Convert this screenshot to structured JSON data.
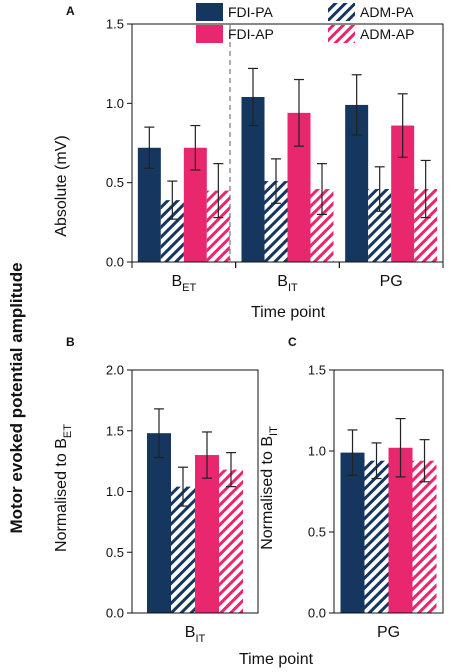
{
  "figure": {
    "ylabel_global": "Motor evoked potential amplitude",
    "xlabel_bottom": "Time point"
  },
  "legend": [
    {
      "name": "FDI-PA"
    },
    {
      "name": "ADM-PA"
    },
    {
      "name": "FDI-AP"
    },
    {
      "name": "ADM-AP"
    }
  ],
  "colors": {
    "FDI-PA": "#15365e",
    "ADM-PA": "#15365e",
    "FDI-AP": "#e8276f",
    "ADM-AP": "#e8276f"
  },
  "chart_data": [
    {
      "panel": "A",
      "type": "bar",
      "ylabel": "Absolute (mV)",
      "xlabel": "Time point",
      "categories": [
        "B_ET",
        "B_IT",
        "PG"
      ],
      "ylim": [
        0,
        1.5
      ],
      "yticks": [
        "0.0",
        "0.5",
        "1.0",
        "1.5"
      ],
      "separator": "dashed vertical line between B_ET and B_IT",
      "series": [
        {
          "name": "FDI-PA",
          "pattern": "solid",
          "values": [
            0.72,
            1.04,
            0.99
          ],
          "errors": [
            0.13,
            0.18,
            0.19
          ]
        },
        {
          "name": "ADM-PA",
          "pattern": "hatched",
          "values": [
            0.39,
            0.51,
            0.46
          ],
          "errors": [
            0.12,
            0.14,
            0.14
          ]
        },
        {
          "name": "FDI-AP",
          "pattern": "solid",
          "values": [
            0.72,
            0.94,
            0.86
          ],
          "errors": [
            0.14,
            0.21,
            0.2
          ]
        },
        {
          "name": "ADM-AP",
          "pattern": "hatched",
          "values": [
            0.45,
            0.46,
            0.46
          ],
          "errors": [
            0.17,
            0.16,
            0.18
          ]
        }
      ]
    },
    {
      "panel": "B",
      "type": "bar",
      "ylabel": "Normalised to B_ET",
      "xlabel": "",
      "categories": [
        "B_IT"
      ],
      "ylim": [
        0,
        2.0
      ],
      "yticks": [
        "0.0",
        "0.5",
        "1.0",
        "1.5",
        "2.0"
      ],
      "series": [
        {
          "name": "FDI-PA",
          "pattern": "solid",
          "values": [
            1.48
          ],
          "errors": [
            0.2
          ]
        },
        {
          "name": "ADM-PA",
          "pattern": "hatched",
          "values": [
            1.04
          ],
          "errors": [
            0.16
          ]
        },
        {
          "name": "FDI-AP",
          "pattern": "solid",
          "values": [
            1.3
          ],
          "errors": [
            0.19
          ]
        },
        {
          "name": "ADM-AP",
          "pattern": "hatched",
          "values": [
            1.18
          ],
          "errors": [
            0.14
          ]
        }
      ]
    },
    {
      "panel": "C",
      "type": "bar",
      "ylabel": "Normalised to B_IT",
      "xlabel": "",
      "categories": [
        "PG"
      ],
      "ylim": [
        0,
        1.5
      ],
      "yticks": [
        "0.0",
        "0.5",
        "1.0",
        "1.5"
      ],
      "series": [
        {
          "name": "FDI-PA",
          "pattern": "solid",
          "values": [
            0.99
          ],
          "errors": [
            0.14
          ]
        },
        {
          "name": "ADM-PA",
          "pattern": "hatched",
          "values": [
            0.94
          ],
          "errors": [
            0.11
          ]
        },
        {
          "name": "FDI-AP",
          "pattern": "solid",
          "values": [
            1.02
          ],
          "errors": [
            0.18
          ]
        },
        {
          "name": "ADM-AP",
          "pattern": "hatched",
          "values": [
            0.94
          ],
          "errors": [
            0.13
          ]
        }
      ]
    }
  ]
}
